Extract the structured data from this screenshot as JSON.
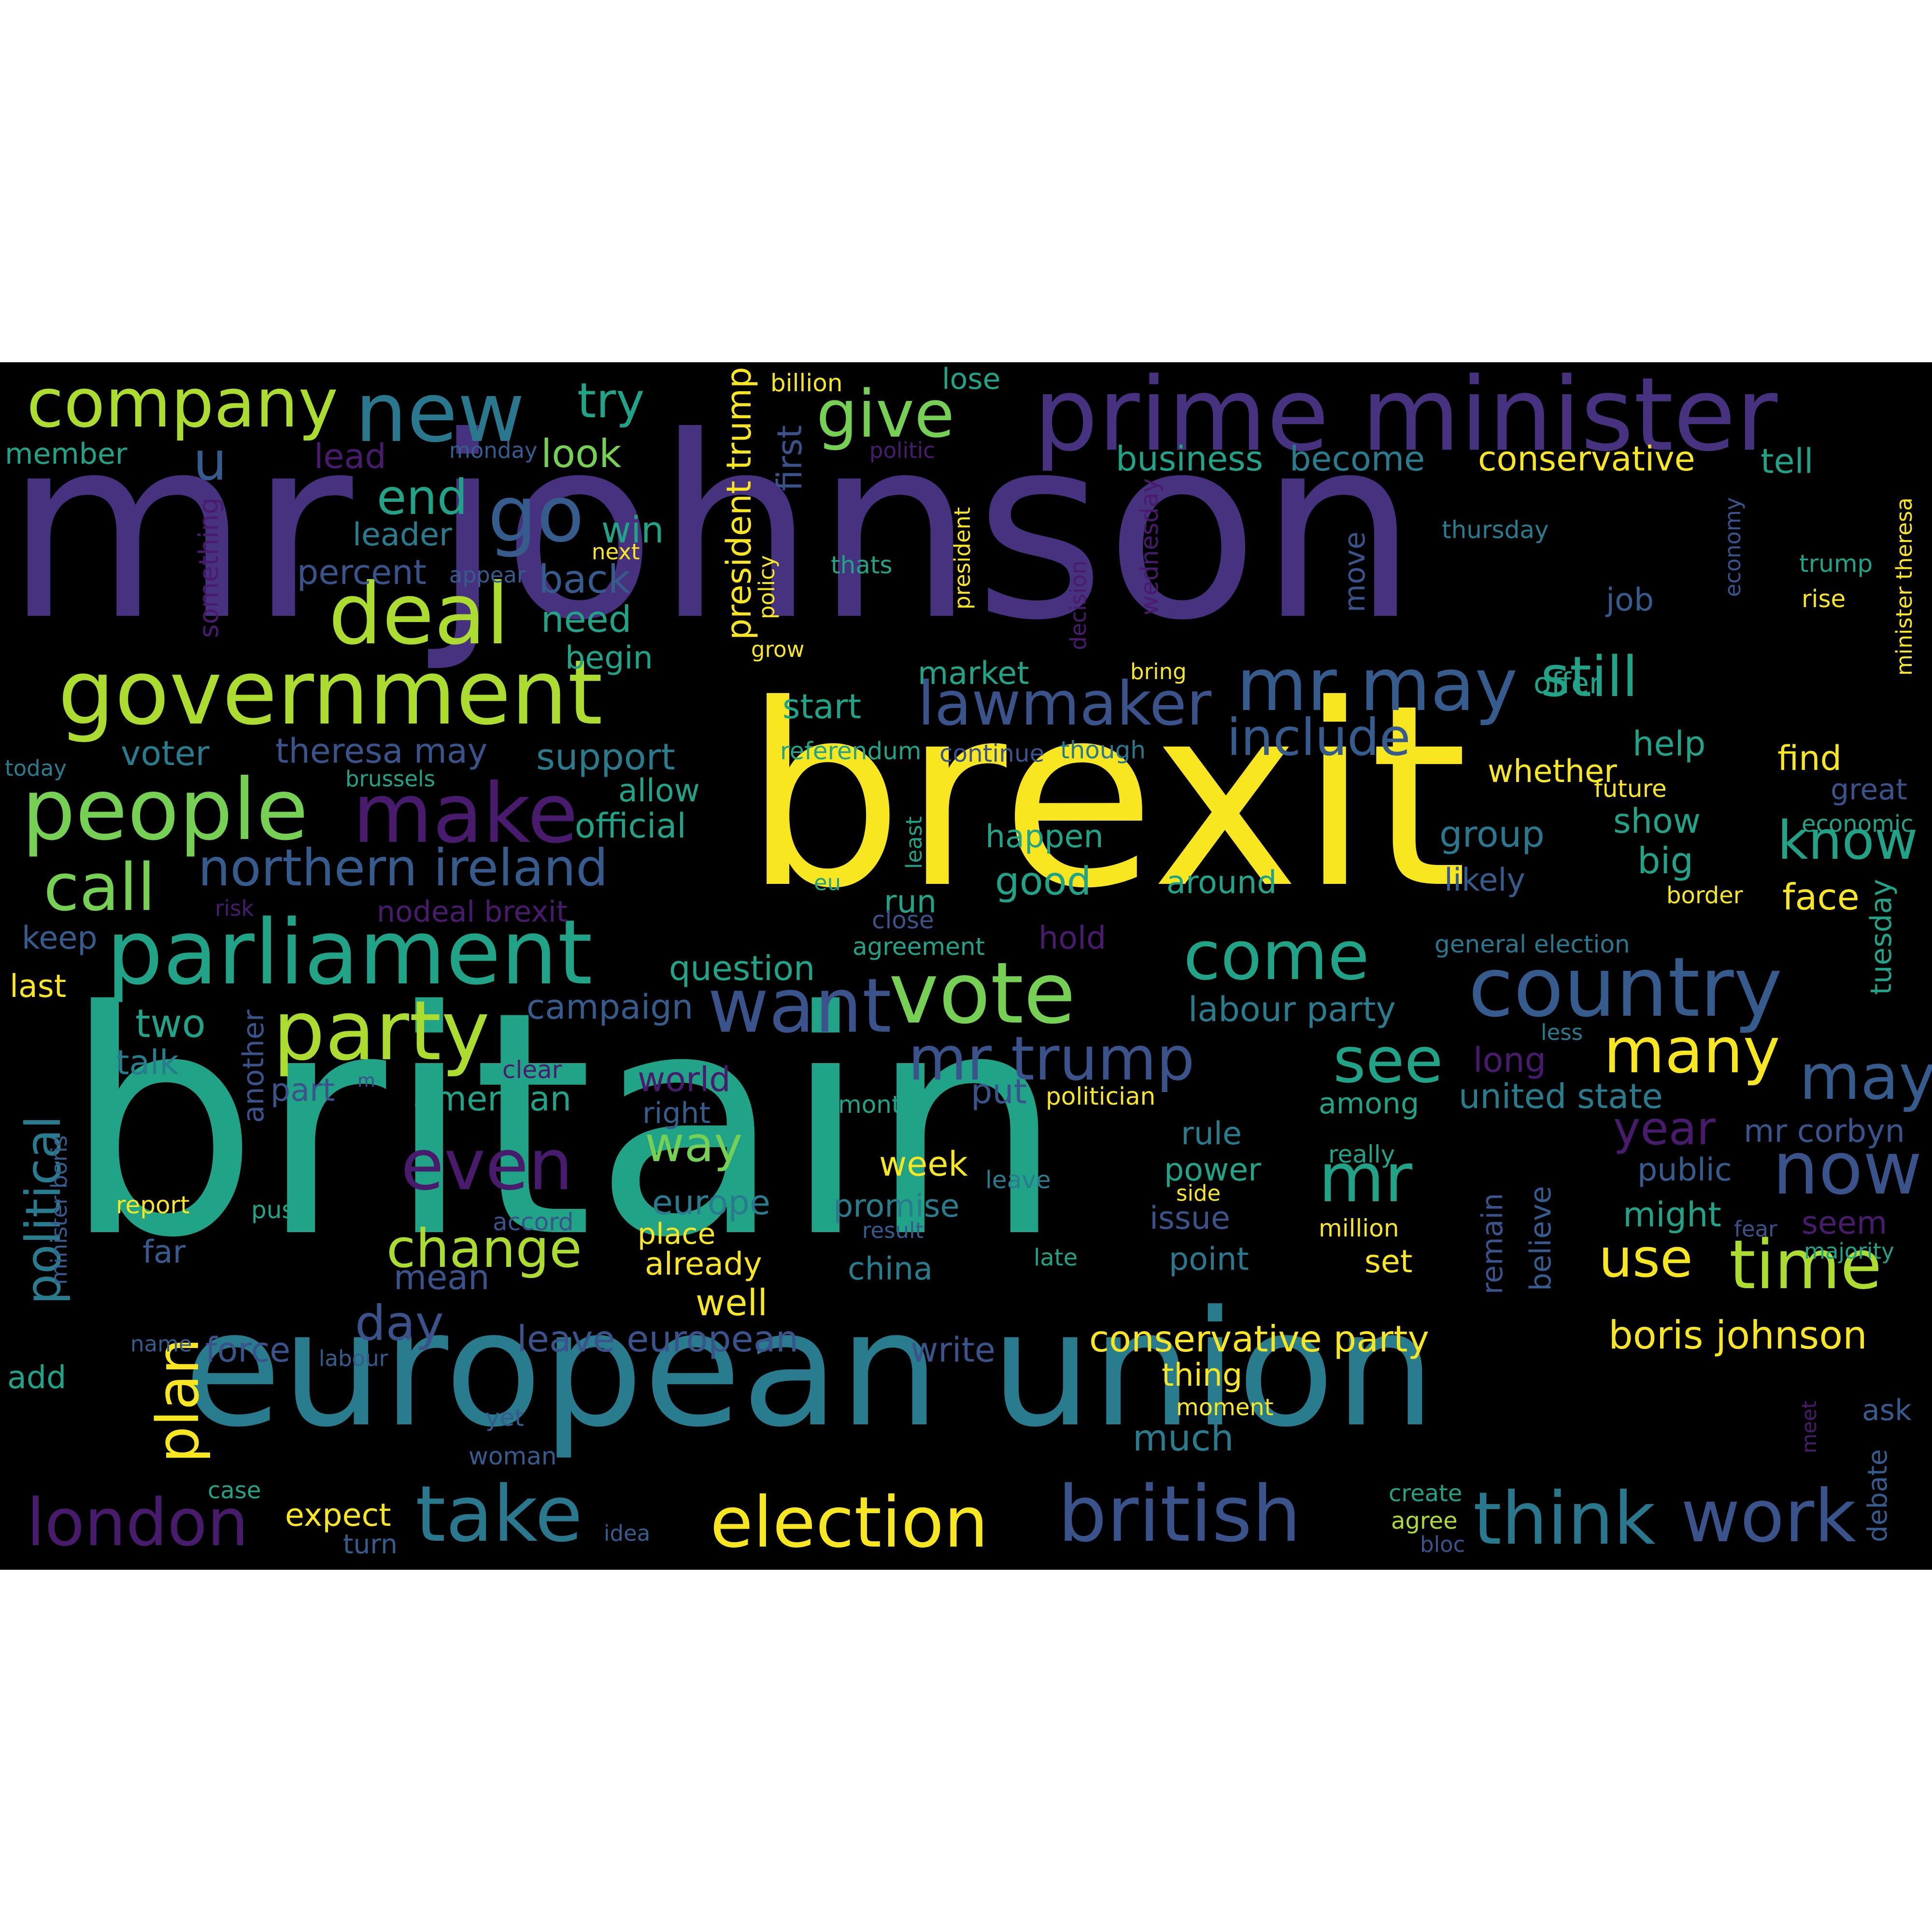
{
  "wordcloud": {
    "palette": {
      "p": "#46327e",
      "t": "#20a386",
      "y": "#f8e621",
      "b": "#287c8e",
      "g": "#75d054",
      "l": "#addc30",
      "m": "#481b6d",
      "n": "#365c8d",
      "k": "#2a788e",
      "q": "#3a538b"
    },
    "words": [
      {
        "text": "mr johnson",
        "color": "p"
      },
      {
        "text": "britain",
        "color": "t"
      },
      {
        "text": "brexit",
        "color": "y"
      },
      {
        "text": "european union",
        "color": "b"
      },
      {
        "text": "prime minister",
        "color": "p"
      },
      {
        "text": "government",
        "color": "l"
      },
      {
        "text": "parliament",
        "color": "t"
      },
      {
        "text": "country",
        "color": "n"
      },
      {
        "text": "people",
        "color": "g"
      },
      {
        "text": "company",
        "color": "l"
      },
      {
        "text": "deal",
        "color": "l"
      },
      {
        "text": "vote",
        "color": "g"
      },
      {
        "text": "new",
        "color": "k"
      },
      {
        "text": "make",
        "color": "m"
      },
      {
        "text": "party",
        "color": "l"
      },
      {
        "text": "mr may",
        "color": "n"
      },
      {
        "text": "want",
        "color": "q"
      },
      {
        "text": "take",
        "color": "k"
      },
      {
        "text": "british",
        "color": "q"
      },
      {
        "text": "election",
        "color": "y"
      },
      {
        "text": "think",
        "color": "k"
      },
      {
        "text": "work",
        "color": "q"
      },
      {
        "text": "lawmaker",
        "color": "q"
      },
      {
        "text": "mr trump",
        "color": "q"
      },
      {
        "text": "many",
        "color": "y"
      },
      {
        "text": "time",
        "color": "l"
      },
      {
        "text": "come",
        "color": "t"
      },
      {
        "text": "even",
        "color": "m"
      },
      {
        "text": "call",
        "color": "g"
      },
      {
        "text": "london",
        "color": "m"
      },
      {
        "text": "now",
        "color": "q"
      },
      {
        "text": "may",
        "color": "n"
      },
      {
        "text": "go",
        "color": "n"
      },
      {
        "text": "give",
        "color": "g"
      },
      {
        "text": "northern ireland",
        "color": "n"
      },
      {
        "text": "include",
        "color": "n"
      },
      {
        "text": "still",
        "color": "t"
      },
      {
        "text": "see",
        "color": "t"
      },
      {
        "text": "mr",
        "color": "t"
      },
      {
        "text": "change",
        "color": "l"
      },
      {
        "text": "plan",
        "color": "y"
      },
      {
        "text": "political",
        "color": "b"
      },
      {
        "text": "know",
        "color": "t"
      },
      {
        "text": "use",
        "color": "y"
      },
      {
        "text": "year",
        "color": "m"
      },
      {
        "text": "way",
        "color": "g"
      },
      {
        "text": "day",
        "color": "q"
      },
      {
        "text": "end",
        "color": "t"
      },
      {
        "text": "try",
        "color": "t"
      },
      {
        "text": "u",
        "color": "n"
      },
      {
        "text": "boris johnson",
        "color": "y"
      },
      {
        "text": "conservative party",
        "color": "y"
      },
      {
        "text": "leave european",
        "color": "q"
      },
      {
        "text": "conservative",
        "color": "y"
      },
      {
        "text": "business",
        "color": "t"
      },
      {
        "text": "become",
        "color": "b"
      },
      {
        "text": "tell",
        "color": "t"
      },
      {
        "text": "look",
        "color": "g"
      },
      {
        "text": "lead",
        "color": "m"
      },
      {
        "text": "member",
        "color": "t"
      },
      {
        "text": "leader",
        "color": "b"
      },
      {
        "text": "percent",
        "color": "q"
      },
      {
        "text": "win",
        "color": "t"
      },
      {
        "text": "back",
        "color": "n"
      },
      {
        "text": "need",
        "color": "t"
      },
      {
        "text": "begin",
        "color": "t"
      },
      {
        "text": "market",
        "color": "t"
      },
      {
        "text": "start",
        "color": "t"
      },
      {
        "text": "voter",
        "color": "b"
      },
      {
        "text": "theresa may",
        "color": "q"
      },
      {
        "text": "support",
        "color": "b"
      },
      {
        "text": "allow",
        "color": "t"
      },
      {
        "text": "official",
        "color": "t"
      },
      {
        "text": "happen",
        "color": "t"
      },
      {
        "text": "good",
        "color": "t"
      },
      {
        "text": "around",
        "color": "t"
      },
      {
        "text": "group",
        "color": "k"
      },
      {
        "text": "likely",
        "color": "n"
      },
      {
        "text": "show",
        "color": "t"
      },
      {
        "text": "big",
        "color": "t"
      },
      {
        "text": "face",
        "color": "y"
      },
      {
        "text": "find",
        "color": "y"
      },
      {
        "text": "help",
        "color": "t"
      },
      {
        "text": "whether",
        "color": "y"
      },
      {
        "text": "offer",
        "color": "t"
      },
      {
        "text": "great",
        "color": "q"
      },
      {
        "text": "question",
        "color": "t"
      },
      {
        "text": "campaign",
        "color": "n"
      },
      {
        "text": "labour party",
        "color": "b"
      },
      {
        "text": "two",
        "color": "t"
      },
      {
        "text": "talk",
        "color": "b"
      },
      {
        "text": "part",
        "color": "q"
      },
      {
        "text": "american",
        "color": "t"
      },
      {
        "text": "world",
        "color": "m"
      },
      {
        "text": "right",
        "color": "n"
      },
      {
        "text": "put",
        "color": "q"
      },
      {
        "text": "among",
        "color": "t"
      },
      {
        "text": "united state",
        "color": "b"
      },
      {
        "text": "mr corbyn",
        "color": "q"
      },
      {
        "text": "public",
        "color": "n"
      },
      {
        "text": "might",
        "color": "t"
      },
      {
        "text": "seem",
        "color": "m"
      },
      {
        "text": "rule",
        "color": "b"
      },
      {
        "text": "power",
        "color": "t"
      },
      {
        "text": "issue",
        "color": "q"
      },
      {
        "text": "point",
        "color": "k"
      },
      {
        "text": "set",
        "color": "y"
      },
      {
        "text": "week",
        "color": "y"
      },
      {
        "text": "europe",
        "color": "b"
      },
      {
        "text": "promise",
        "color": "b"
      },
      {
        "text": "place",
        "color": "y"
      },
      {
        "text": "already",
        "color": "y"
      },
      {
        "text": "china",
        "color": "b"
      },
      {
        "text": "well",
        "color": "y"
      },
      {
        "text": "mean",
        "color": "q"
      },
      {
        "text": "far",
        "color": "n"
      },
      {
        "text": "keep",
        "color": "n"
      },
      {
        "text": "last",
        "color": "y"
      },
      {
        "text": "add",
        "color": "t"
      },
      {
        "text": "force",
        "color": "q"
      },
      {
        "text": "write",
        "color": "q"
      },
      {
        "text": "thing",
        "color": "y"
      },
      {
        "text": "much",
        "color": "b"
      },
      {
        "text": "expect",
        "color": "y"
      },
      {
        "text": "turn",
        "color": "n"
      },
      {
        "text": "ask",
        "color": "n"
      },
      {
        "text": "hold",
        "color": "m"
      },
      {
        "text": "long",
        "color": "m"
      },
      {
        "text": "run",
        "color": "t"
      },
      {
        "text": "job",
        "color": "n"
      },
      {
        "text": "rise",
        "color": "y"
      },
      {
        "text": "trump",
        "color": "t"
      },
      {
        "text": "thursday",
        "color": "b"
      },
      {
        "text": "thats",
        "color": "t"
      },
      {
        "text": "referendum",
        "color": "t"
      },
      {
        "text": "continue",
        "color": "q"
      },
      {
        "text": "though",
        "color": "k"
      },
      {
        "text": "future",
        "color": "y"
      },
      {
        "text": "economic",
        "color": "t"
      },
      {
        "text": "border",
        "color": "y"
      },
      {
        "text": "general election",
        "color": "k"
      },
      {
        "text": "agreement",
        "color": "t"
      },
      {
        "text": "close",
        "color": "q"
      },
      {
        "text": "eu",
        "color": "t"
      },
      {
        "text": "nodeal brexit",
        "color": "m"
      },
      {
        "text": "risk",
        "color": "m"
      },
      {
        "text": "clear",
        "color": "m"
      },
      {
        "text": "month",
        "color": "t"
      },
      {
        "text": "politician",
        "color": "y"
      },
      {
        "text": "really",
        "color": "t"
      },
      {
        "text": "leave",
        "color": "b"
      },
      {
        "text": "side",
        "color": "y"
      },
      {
        "text": "million",
        "color": "y"
      },
      {
        "text": "fear",
        "color": "q"
      },
      {
        "text": "majority",
        "color": "t"
      },
      {
        "text": "result",
        "color": "n"
      },
      {
        "text": "late",
        "color": "t"
      },
      {
        "text": "accord",
        "color": "q"
      },
      {
        "text": "push",
        "color": "t"
      },
      {
        "text": "report",
        "color": "y"
      },
      {
        "text": "name",
        "color": "n"
      },
      {
        "text": "labour",
        "color": "n"
      },
      {
        "text": "moment",
        "color": "y"
      },
      {
        "text": "yet",
        "color": "n"
      },
      {
        "text": "woman",
        "color": "n"
      },
      {
        "text": "case",
        "color": "t"
      },
      {
        "text": "idea",
        "color": "n"
      },
      {
        "text": "create",
        "color": "t"
      },
      {
        "text": "agree",
        "color": "l"
      },
      {
        "text": "bloc",
        "color": "q"
      },
      {
        "text": "billion",
        "color": "y"
      },
      {
        "text": "lose",
        "color": "t"
      },
      {
        "text": "monday",
        "color": "n"
      },
      {
        "text": "politic",
        "color": "m"
      },
      {
        "text": "next",
        "color": "y"
      },
      {
        "text": "appear",
        "color": "n"
      },
      {
        "text": "today",
        "color": "b"
      },
      {
        "text": "brussels",
        "color": "t"
      },
      {
        "text": "bring",
        "color": "y"
      },
      {
        "text": "grow",
        "color": "y"
      },
      {
        "text": "policy",
        "color": "y"
      },
      {
        "text": "m",
        "color": "q"
      },
      {
        "text": "less",
        "color": "b"
      },
      {
        "text": "meet",
        "color": "m"
      },
      {
        "text": "first",
        "color": "q"
      },
      {
        "text": "president trump",
        "color": "y"
      },
      {
        "text": "something",
        "color": "m"
      },
      {
        "text": "president",
        "color": "y"
      },
      {
        "text": "decision",
        "color": "m"
      },
      {
        "text": "wednesday",
        "color": "m"
      },
      {
        "text": "move",
        "color": "q"
      },
      {
        "text": "least",
        "color": "t"
      },
      {
        "text": "another",
        "color": "q"
      },
      {
        "text": "remain",
        "color": "q"
      },
      {
        "text": "believe",
        "color": "n"
      },
      {
        "text": "tuesday",
        "color": "t"
      },
      {
        "text": "debate",
        "color": "n"
      },
      {
        "text": "economy",
        "color": "q"
      },
      {
        "text": "minister theresa",
        "color": "y"
      },
      {
        "text": "minister boris",
        "color": "n"
      }
    ]
  }
}
